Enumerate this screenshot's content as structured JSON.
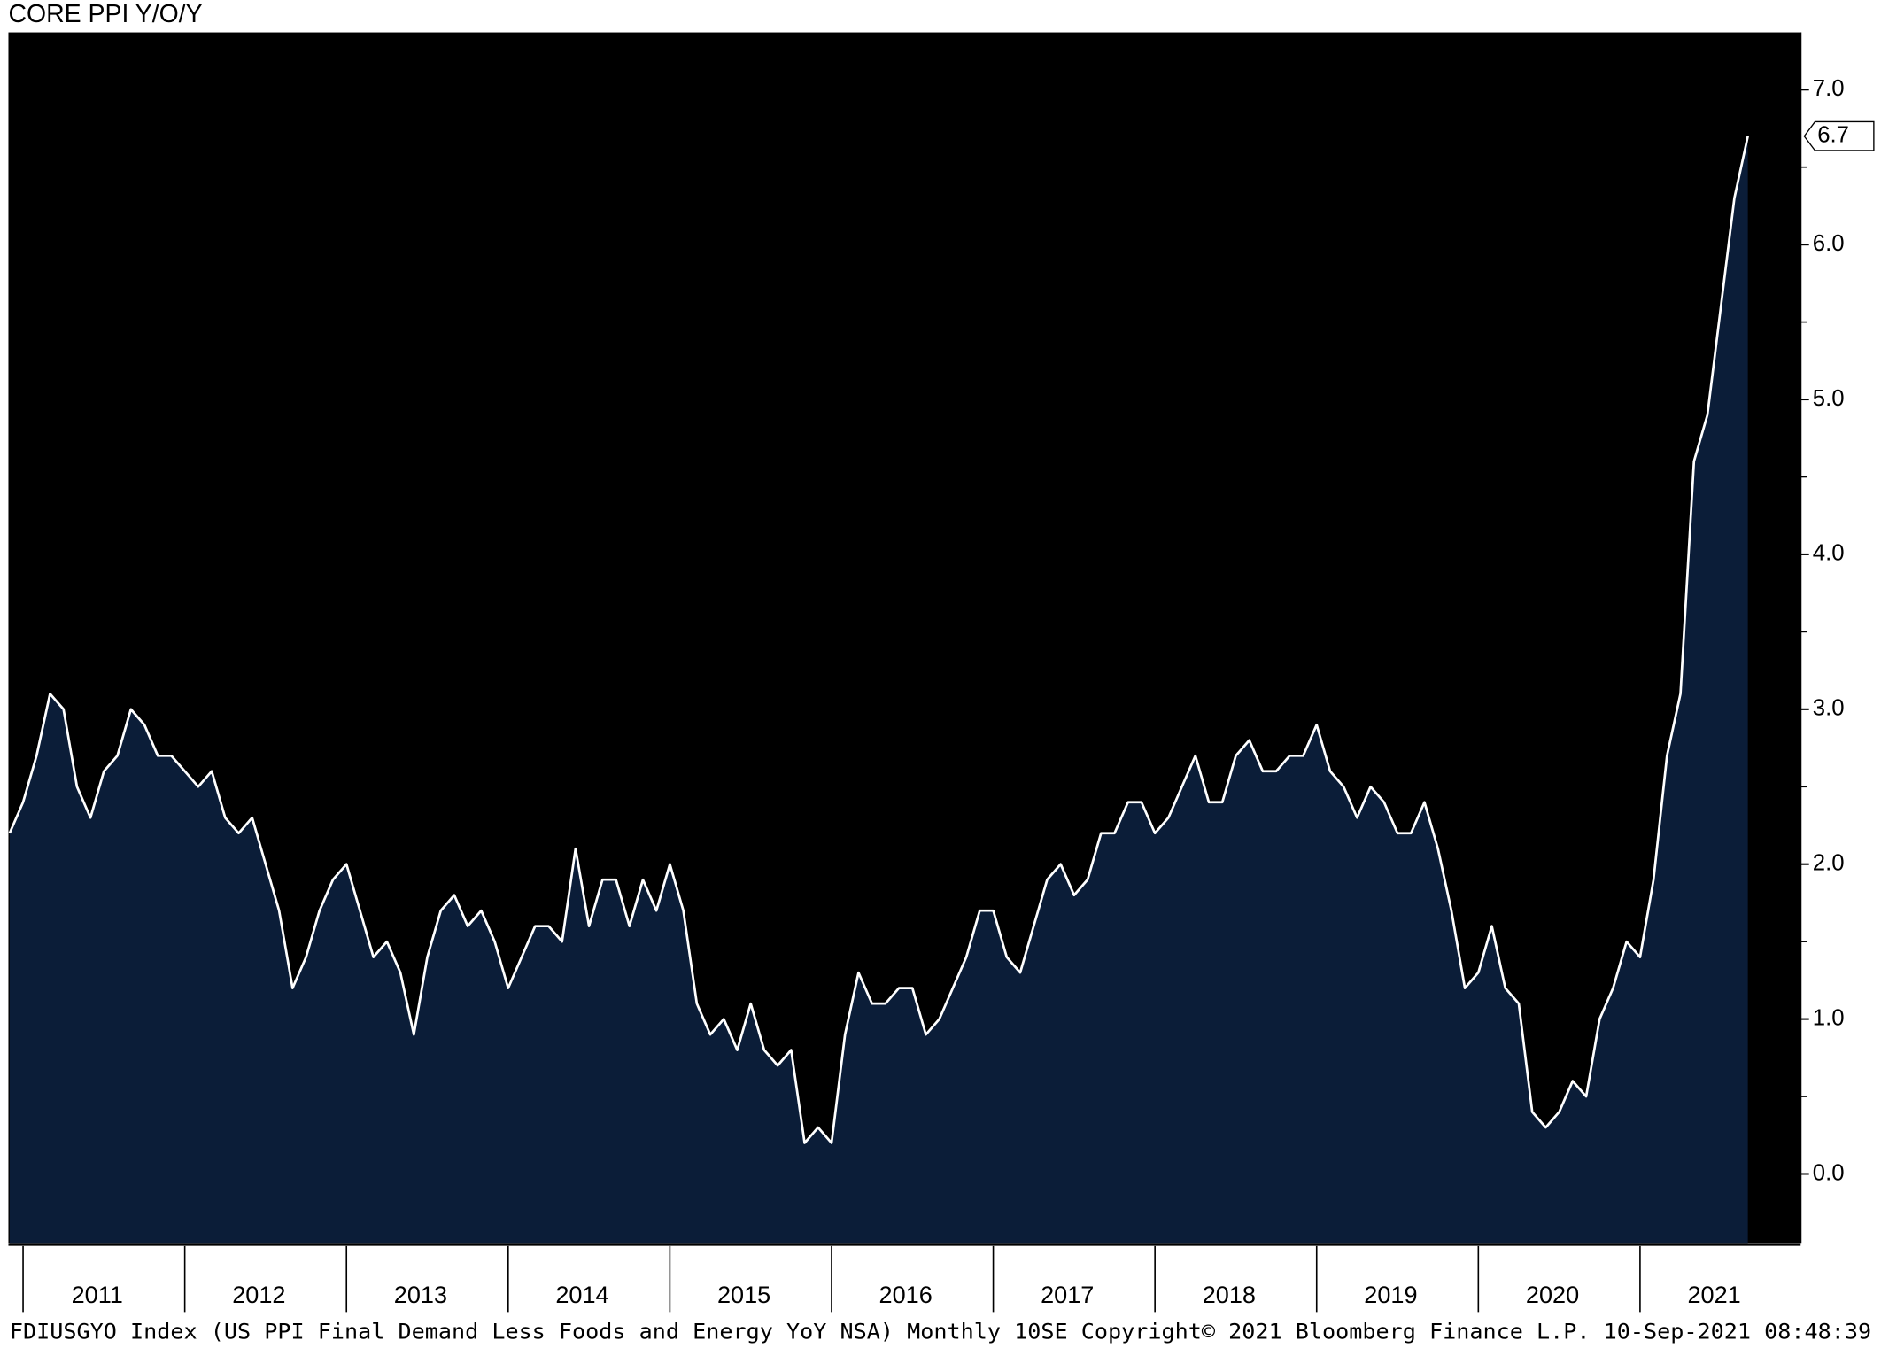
{
  "chart_data": {
    "type": "area",
    "title": "CORE PPI Y/O/Y",
    "footer": "FDIUSGYO Index (US PPI Final Demand Less Foods and Energy YoY NSA)  Monthly 10SE  Copyright© 2021 Bloomberg Finance L.P.  10-Sep-2021 08:48:39",
    "categories": [
      null,
      null,
      null,
      null,
      null,
      null,
      null,
      "2011",
      null,
      null,
      null,
      null,
      null,
      null,
      null,
      null,
      null,
      null,
      null,
      "2012",
      null,
      null,
      null,
      null,
      null,
      null,
      null,
      null,
      null,
      null,
      null,
      "2013",
      null,
      null,
      null,
      null,
      null,
      null,
      null,
      null,
      null,
      null,
      null,
      "2014",
      null,
      null,
      null,
      null,
      null,
      null,
      null,
      null,
      null,
      null,
      null,
      "2015",
      null,
      null,
      null,
      null,
      null,
      null,
      null,
      null,
      null,
      null,
      null,
      "2016",
      null,
      null,
      null,
      null,
      null,
      null,
      null,
      null,
      null,
      null,
      null,
      "2017",
      null,
      null,
      null,
      null,
      null,
      null,
      null,
      null,
      null,
      null,
      null,
      "2018",
      null,
      null,
      null,
      null,
      null,
      null,
      null,
      null,
      null,
      null,
      null,
      "2019",
      null,
      null,
      null,
      null,
      null,
      null,
      null,
      null,
      null,
      null,
      null,
      "2020",
      null,
      null,
      null,
      null,
      null,
      null,
      null,
      null,
      null,
      null,
      null,
      "2021",
      null,
      null
    ],
    "series": [
      {
        "name": "FDIUSGYO Index",
        "color": "#ffffff",
        "fill": "#0b1d38",
        "values": [
          2.2,
          2.4,
          2.7,
          3.1,
          3.0,
          2.5,
          2.3,
          2.6,
          2.7,
          3.0,
          2.9,
          2.7,
          2.7,
          2.6,
          2.5,
          2.6,
          2.3,
          2.2,
          2.3,
          2.0,
          1.7,
          1.2,
          1.4,
          1.7,
          1.9,
          2.0,
          1.7,
          1.4,
          1.5,
          1.3,
          0.9,
          1.4,
          1.7,
          1.8,
          1.6,
          1.7,
          1.5,
          1.2,
          1.4,
          1.6,
          1.6,
          1.5,
          2.1,
          1.6,
          1.9,
          1.9,
          1.6,
          1.9,
          1.7,
          2.0,
          1.7,
          1.1,
          0.9,
          1.0,
          0.8,
          1.1,
          0.8,
          0.7,
          0.8,
          0.2,
          0.3,
          0.2,
          0.9,
          1.3,
          1.1,
          1.1,
          1.2,
          1.2,
          0.9,
          1.0,
          1.2,
          1.4,
          1.7,
          1.7,
          1.4,
          1.3,
          1.6,
          1.9,
          2.0,
          1.8,
          1.9,
          2.2,
          2.2,
          2.4,
          2.4,
          2.2,
          2.3,
          2.5,
          2.7,
          2.4,
          2.4,
          2.7,
          2.8,
          2.6,
          2.6,
          2.7,
          2.7,
          2.9,
          2.6,
          2.5,
          2.3,
          2.5,
          2.4,
          2.2,
          2.2,
          2.4,
          2.1,
          1.7,
          1.2,
          1.3,
          1.6,
          1.2,
          1.1,
          0.4,
          0.3,
          0.4,
          0.6,
          0.5,
          1.0,
          1.2,
          1.5,
          1.4,
          1.9,
          2.7,
          3.1,
          4.6,
          4.9,
          5.6,
          6.3,
          6.7
        ]
      }
    ],
    "last_value_label": "6.7",
    "ylim": [
      -0.45,
      7.37
    ],
    "yticks": [
      {
        "value": 0,
        "label": "0.0"
      },
      {
        "value": 1,
        "label": "1.0"
      },
      {
        "value": 2,
        "label": "2.0"
      },
      {
        "value": 3,
        "label": "3.0"
      },
      {
        "value": 4,
        "label": "4.0"
      },
      {
        "value": 5,
        "label": "5.0"
      },
      {
        "value": 6,
        "label": "6.0"
      },
      {
        "value": 7,
        "label": "7.0"
      }
    ],
    "yminor_ticks": [
      0.5,
      1.5,
      2.5,
      3.5,
      4.5,
      5.5,
      6.5
    ],
    "y_axis_side": "right",
    "background": "#000000"
  }
}
